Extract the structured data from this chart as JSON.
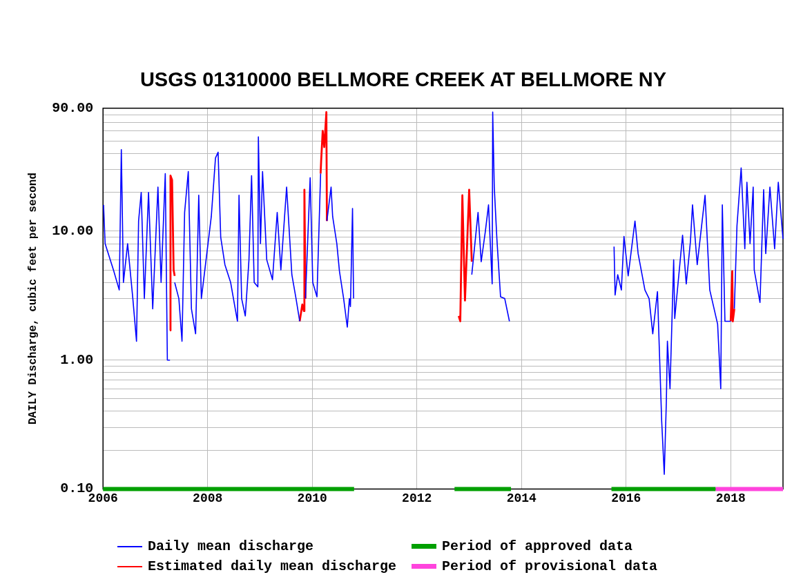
{
  "chart_data": {
    "type": "line",
    "title": "USGS 01310000 BELLMORE CREEK AT BELLMORE NY",
    "ylabel": "DAILY Discharge, cubic feet per second",
    "log": "y",
    "grid": true,
    "legend": "bottom",
    "xlim": [
      2006,
      2019
    ],
    "xticks": [
      2006,
      2008,
      2010,
      2012,
      2014,
      2016,
      2018
    ],
    "ylim": [
      0.1,
      90
    ],
    "yticks": [
      {
        "value": 0.1,
        "label": "0.10"
      },
      {
        "value": 0.2,
        "label": null
      },
      {
        "value": 0.3,
        "label": null
      },
      {
        "value": 0.4,
        "label": null
      },
      {
        "value": 0.5,
        "label": null
      },
      {
        "value": 0.6,
        "label": null
      },
      {
        "value": 0.7,
        "label": null
      },
      {
        "value": 0.8,
        "label": null
      },
      {
        "value": 0.9,
        "label": null
      },
      {
        "value": 1,
        "label": "1.00"
      },
      {
        "value": 2,
        "label": null
      },
      {
        "value": 3,
        "label": null
      },
      {
        "value": 4,
        "label": null
      },
      {
        "value": 5,
        "label": null
      },
      {
        "value": 6,
        "label": null
      },
      {
        "value": 7,
        "label": null
      },
      {
        "value": 8,
        "label": null
      },
      {
        "value": 9,
        "label": null
      },
      {
        "value": 10,
        "label": "10.00"
      },
      {
        "value": 20,
        "label": null
      },
      {
        "value": 30,
        "label": null
      },
      {
        "value": 40,
        "label": null
      },
      {
        "value": 50,
        "label": null
      },
      {
        "value": 60,
        "label": null
      },
      {
        "value": 70,
        "label": null
      },
      {
        "value": 80,
        "label": null
      },
      {
        "value": 90,
        "label": "90.00"
      }
    ],
    "series": [
      {
        "name": "Daily mean discharge",
        "color": "#0000ff",
        "x": [
          2006.01,
          2006.04,
          2006.2,
          2006.31,
          2006.35,
          2006.39,
          2006.47,
          2006.57,
          2006.64,
          2006.68,
          2006.73,
          2006.79,
          2006.87,
          2006.95,
          2007.05,
          2007.11,
          2007.19,
          2007.23,
          2007.28,
          2007.3,
          2007.37,
          2007.45,
          2007.51,
          2007.56,
          2007.63,
          2007.69,
          2007.77,
          2007.83,
          2007.88,
          2007.97,
          2008.07,
          2008.15,
          2008.2,
          2008.25,
          2008.33,
          2008.44,
          2008.52,
          2008.57,
          2008.6,
          2008.65,
          2008.72,
          2008.79,
          2008.84,
          2008.89,
          2008.96,
          2008.97,
          2009.01,
          2009.05,
          2009.13,
          2009.24,
          2009.33,
          2009.4,
          2009.51,
          2009.61,
          2009.69,
          2009.76,
          2009.8,
          2009.87,
          2009.96,
          2010.01,
          2010.09,
          2010.16,
          2010.2,
          2010.28,
          2010.36,
          2010.39,
          2010.47,
          2010.52,
          2010.6,
          2010.67,
          2010.71,
          2010.73,
          2010.77,
          2010.79,
          2011.5,
          2013.05,
          2013.17,
          2013.23,
          2013.31,
          2013.37,
          2013.44,
          2013.45,
          2013.48,
          2013.53,
          2013.6,
          2013.68,
          2013.77,
          2014.5,
          2015.77,
          2015.79,
          2015.84,
          2015.91,
          2015.96,
          2016.04,
          2016.17,
          2016.23,
          2016.36,
          2016.44,
          2016.51,
          2016.6,
          2016.68,
          2016.73,
          2016.77,
          2016.79,
          2016.84,
          2016.91,
          2016.93,
          2017.08,
          2017.15,
          2017.23,
          2017.27,
          2017.36,
          2017.51,
          2017.6,
          2017.75,
          2017.81,
          2017.84,
          2017.89,
          2018.0,
          2018.03,
          2018.07,
          2018.12,
          2018.2,
          2018.27,
          2018.31,
          2018.37,
          2018.43,
          2018.45,
          2018.56,
          2018.63,
          2018.67,
          2018.75,
          2018.84,
          2018.91,
          2019.0
        ],
        "values": [
          16,
          8,
          5,
          3.5,
          43,
          4,
          8,
          3,
          1.4,
          12,
          20,
          3,
          20,
          2.5,
          22,
          4,
          28,
          1,
          1,
          null,
          4,
          3,
          1.4,
          14,
          29,
          2.5,
          1.6,
          19,
          3,
          6,
          13,
          37,
          41,
          9,
          5.5,
          4,
          2.6,
          2,
          19,
          3,
          2.2,
          6,
          27,
          4,
          3.7,
          54,
          8,
          29,
          6,
          4.2,
          14,
          5,
          22,
          4.6,
          3,
          2,
          null,
          3,
          26,
          4,
          3.1,
          28,
          null,
          12,
          22,
          13,
          8,
          4.9,
          3,
          1.8,
          3,
          2.6,
          15,
          3,
          null,
          4.6,
          14,
          5.8,
          10,
          16,
          3.9,
          84,
          22,
          8.7,
          3.1,
          3,
          2,
          null,
          7.6,
          3.2,
          4.6,
          3.5,
          9.1,
          4.5,
          12,
          6.7,
          3.5,
          3,
          1.6,
          3.4,
          0.34,
          0.13,
          0.48,
          1.4,
          0.6,
          6,
          2.1,
          9.3,
          3.9,
          8.3,
          16,
          5.5,
          19,
          3.5,
          1.9,
          0.6,
          16,
          2,
          2,
          null,
          2.5,
          11,
          31,
          7.3,
          24,
          8,
          22,
          5,
          2.8,
          21,
          6.7,
          22,
          7.3,
          24,
          8.7
        ]
      },
      {
        "name": "Estimated daily mean discharge",
        "color": "#ff0000",
        "x": [
          2007.28,
          2007.29,
          2007.32,
          2007.35,
          2007.37,
          2008,
          2009.76,
          2009.81,
          2009.84,
          2009.85,
          2009.87,
          2010,
          2010.16,
          2010.17,
          2010.2,
          2010.23,
          2010.27,
          2010.28,
          2011,
          2012.8,
          2012.83,
          2012.87,
          2012.92,
          2013.0,
          2013.05,
          2015,
          2018.0,
          2018.03,
          2018.04,
          2018.07
        ],
        "values": [
          1.7,
          27,
          25,
          5,
          4.5,
          null,
          2,
          2.7,
          2.4,
          21,
          3,
          null,
          28,
          35,
          60,
          45,
          84,
          12,
          null,
          2.2,
          2,
          19,
          2.9,
          21,
          5.8,
          null,
          2,
          4.9,
          2,
          2.5
        ]
      },
      {
        "name": "Period of approved data",
        "color": "#00a000",
        "x": [
          2006,
          2010.8,
          2011.5,
          2012.72,
          2013.8,
          2014.5,
          2015.72,
          2017.71
        ],
        "values": [
          0.1,
          0.1,
          null,
          0.1,
          0.1,
          null,
          0.1,
          0.1
        ]
      },
      {
        "name": "Period of provisional data",
        "color": "#ff44dd",
        "x": [
          2017.71,
          2019
        ],
        "values": [
          0.1,
          0.1
        ]
      }
    ]
  }
}
